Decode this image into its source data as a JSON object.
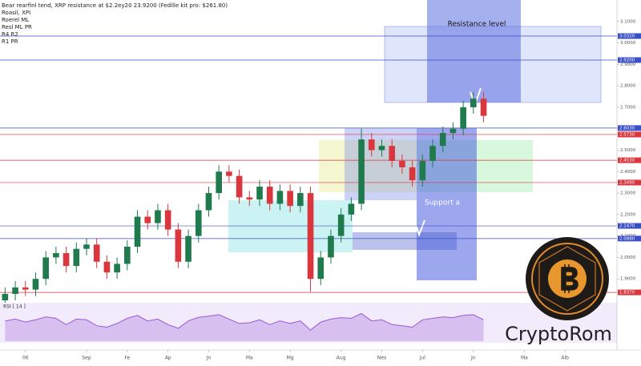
{
  "chart_data": {
    "type": "candlestick",
    "title": "Bear rearfinl tend, XRP resistance at $2.2ey20 23.9200 (Fedille kit pro: $261.80)",
    "legend_lines": [
      "Roasil, XPI",
      "Roerel ML",
      "Resl ML PR",
      "R4 R2",
      "R1 PR"
    ],
    "annotations": {
      "resistance": "Resistance level",
      "support": "Support a",
      "brand": "CryptoRom",
      "rsi_label": "RSI [ 14 ]"
    },
    "up_color": "#1f7a4d",
    "down_color": "#d9363e",
    "xlim": [
      -0.5,
      60.1
    ],
    "ylim": [
      1.8,
      3.2
    ],
    "x": [
      0,
      1,
      2,
      3,
      4,
      5,
      6,
      7,
      8,
      9,
      10,
      11,
      12,
      13,
      14,
      15,
      16,
      17,
      18,
      19,
      20,
      21,
      22,
      23,
      24,
      25,
      26,
      27,
      28,
      29,
      30,
      31,
      32,
      33,
      34,
      35,
      36,
      37,
      38,
      39,
      40,
      41,
      42,
      43,
      44,
      45,
      46,
      47
    ],
    "ohlc": [
      [
        1.8,
        1.86,
        1.77,
        1.83
      ],
      [
        1.83,
        1.89,
        1.8,
        1.86
      ],
      [
        1.86,
        1.89,
        1.82,
        1.85
      ],
      [
        1.85,
        1.93,
        1.82,
        1.9
      ],
      [
        1.9,
        2.03,
        1.87,
        2.0
      ],
      [
        2.0,
        2.05,
        1.97,
        2.02
      ],
      [
        2.02,
        2.05,
        1.93,
        1.96
      ],
      [
        1.96,
        2.07,
        1.93,
        2.04
      ],
      [
        2.04,
        2.09,
        2.01,
        2.06
      ],
      [
        2.06,
        2.09,
        1.95,
        1.98
      ],
      [
        1.98,
        2.01,
        1.9,
        1.93
      ],
      [
        1.93,
        2.0,
        1.9,
        1.97
      ],
      [
        1.97,
        2.08,
        1.94,
        2.05
      ],
      [
        2.05,
        2.22,
        2.02,
        2.19
      ],
      [
        2.19,
        2.22,
        2.13,
        2.16
      ],
      [
        2.16,
        2.25,
        2.13,
        2.22
      ],
      [
        2.22,
        2.25,
        2.1,
        2.13
      ],
      [
        2.13,
        2.16,
        1.95,
        1.98
      ],
      [
        1.98,
        2.13,
        1.95,
        2.1
      ],
      [
        2.1,
        2.25,
        2.07,
        2.22
      ],
      [
        2.22,
        2.33,
        2.19,
        2.3
      ],
      [
        2.3,
        2.43,
        2.27,
        2.4
      ],
      [
        2.4,
        2.43,
        2.35,
        2.38
      ],
      [
        2.38,
        2.41,
        2.25,
        2.28
      ],
      [
        2.28,
        2.31,
        2.24,
        2.27
      ],
      [
        2.27,
        2.36,
        2.24,
        2.33
      ],
      [
        2.33,
        2.36,
        2.22,
        2.25
      ],
      [
        2.25,
        2.34,
        2.22,
        2.31
      ],
      [
        2.31,
        2.34,
        2.21,
        2.24
      ],
      [
        2.24,
        2.33,
        2.21,
        2.3
      ],
      [
        2.3,
        2.33,
        1.84,
        1.9
      ],
      [
        1.9,
        2.03,
        1.87,
        2.0
      ],
      [
        2.0,
        2.13,
        1.97,
        2.1
      ],
      [
        2.1,
        2.23,
        2.07,
        2.2
      ],
      [
        2.2,
        2.28,
        2.17,
        2.25
      ],
      [
        2.25,
        2.6,
        2.22,
        2.55
      ],
      [
        2.55,
        2.58,
        2.47,
        2.5
      ],
      [
        2.5,
        2.55,
        2.47,
        2.52
      ],
      [
        2.52,
        2.55,
        2.42,
        2.45
      ],
      [
        2.45,
        2.48,
        2.39,
        2.42
      ],
      [
        2.42,
        2.45,
        2.33,
        2.36
      ],
      [
        2.36,
        2.48,
        2.33,
        2.45
      ],
      [
        2.45,
        2.55,
        2.42,
        2.52
      ],
      [
        2.52,
        2.61,
        2.49,
        2.58
      ],
      [
        2.58,
        2.63,
        2.55,
        2.6
      ],
      [
        2.6,
        2.73,
        2.57,
        2.7
      ],
      [
        2.7,
        2.77,
        2.67,
        2.74
      ],
      [
        2.74,
        2.77,
        2.63,
        2.66
      ]
    ],
    "yticks": [
      {
        "value": 1.9,
        "label": "1.9000"
      },
      {
        "value": 2.0,
        "label": "2.0000"
      },
      {
        "value": 2.1,
        "label": "2.1000"
      },
      {
        "value": 2.2,
        "label": "2.2000"
      },
      {
        "value": 2.3,
        "label": "2.3000"
      },
      {
        "value": 2.4,
        "label": "2.4000"
      },
      {
        "value": 2.5,
        "label": "2.5000"
      },
      {
        "value": 2.6,
        "label": "2.6000"
      },
      {
        "value": 2.7,
        "label": "2.7000"
      },
      {
        "value": 2.8,
        "label": "2.8000"
      },
      {
        "value": 2.9,
        "label": "2.9000"
      },
      {
        "value": 3.0,
        "label": "3.0000"
      },
      {
        "value": 3.1,
        "label": "3.1000"
      }
    ],
    "levels": [
      {
        "value": 3.032,
        "label": "3.0320",
        "color": "#3a4fc7"
      },
      {
        "value": 2.92,
        "label": "2.9200",
        "color": "#3a4fc7"
      },
      {
        "value": 2.603,
        "label": "2.6030",
        "color": "#3a4fc7"
      },
      {
        "value": 2.573,
        "label": "2.5730",
        "color": "#d9363e"
      },
      {
        "value": 2.453,
        "label": "2.4530",
        "color": "#d9363e"
      },
      {
        "value": 2.349,
        "label": "2.3490",
        "color": "#d9363e"
      },
      {
        "value": 2.147,
        "label": "2.1470",
        "color": "#3a4fc7"
      },
      {
        "value": 2.088,
        "label": "2.0880",
        "color": "#3a4fc7"
      },
      {
        "value": 1.837,
        "label": "1.8370",
        "color": "#d9363e"
      }
    ],
    "xticks": [
      {
        "value": 2,
        "label": "06"
      },
      {
        "value": 8,
        "label": "Sep"
      },
      {
        "value": 12,
        "label": "Fe"
      },
      {
        "value": 16,
        "label": "Ap"
      },
      {
        "value": 20,
        "label": "Jn"
      },
      {
        "value": 24,
        "label": "Ma"
      },
      {
        "value": 28,
        "label": "Mg"
      },
      {
        "value": 33,
        "label": "Aug"
      },
      {
        "value": 37,
        "label": "Nes"
      },
      {
        "value": 41,
        "label": "Jul"
      },
      {
        "value": 46,
        "label": "Jn"
      },
      {
        "value": 51,
        "label": "Ma"
      },
      {
        "value": 55,
        "label": "Alb"
      }
    ],
    "rsi": {
      "color": "#9b59d6",
      "ylim": [
        0,
        100
      ],
      "values": [
        55,
        60,
        52,
        58,
        66,
        62,
        45,
        60,
        58,
        42,
        38,
        48,
        62,
        70,
        55,
        60,
        45,
        35,
        55,
        65,
        68,
        72,
        60,
        48,
        50,
        58,
        45,
        55,
        48,
        55,
        30,
        52,
        60,
        64,
        62,
        75,
        55,
        58,
        45,
        42,
        38,
        58,
        62,
        66,
        64,
        70,
        72,
        58
      ]
    }
  }
}
